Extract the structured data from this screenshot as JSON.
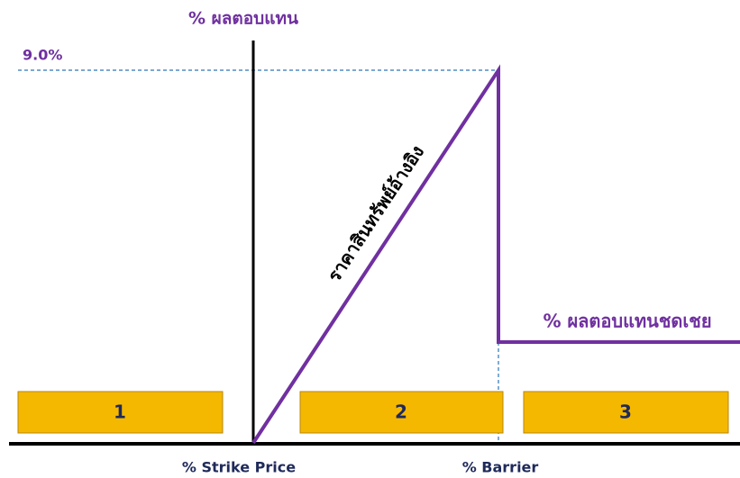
{
  "y_axis_label": "% ผลตอบแทน",
  "max_label": "9.0%",
  "line_label": "ราคาสินทรัพย์อ้างอิง",
  "rebate_label": "% ผลตอบแทนชดเชย",
  "zones": [
    "1",
    "2",
    "3"
  ],
  "x_labels": {
    "strike": "% Strike Price",
    "barrier": "% Barrier"
  }
}
